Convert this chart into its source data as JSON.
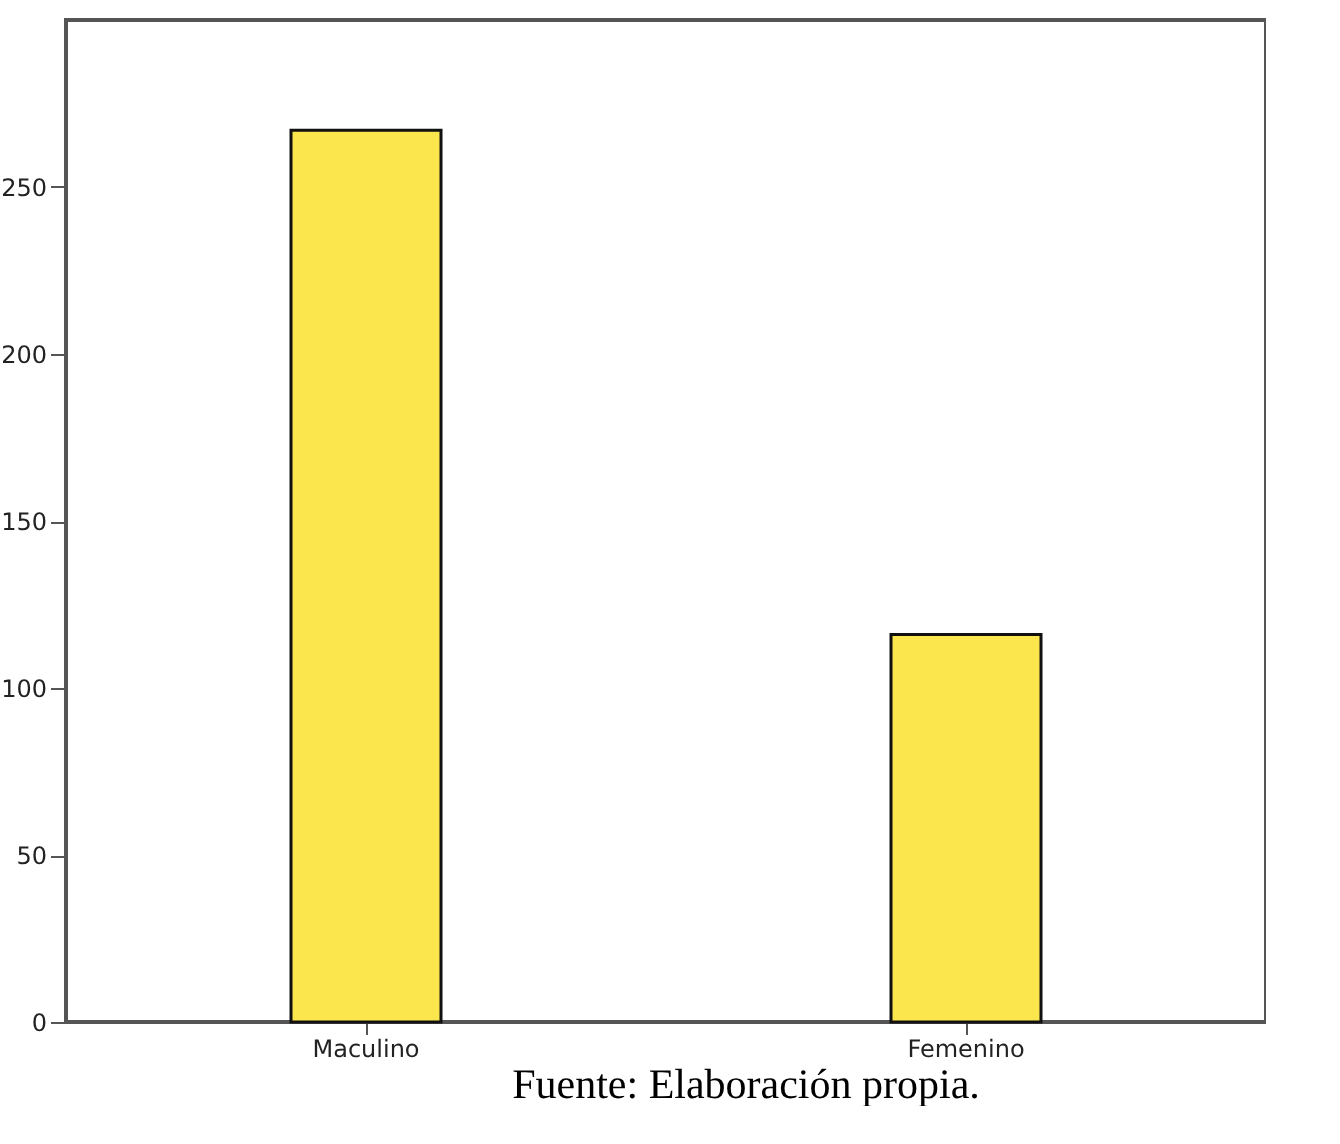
{
  "chart_data": {
    "type": "bar",
    "categories": [
      "Maculino",
      "Femenino"
    ],
    "values": [
      267,
      116
    ],
    "color": "#fbe64d",
    "ylim": [
      0,
      300
    ],
    "yticks": [
      0,
      50,
      100,
      150,
      200,
      250
    ],
    "grid": false,
    "annotations": [
      "Fuente: Elaboración propia."
    ]
  }
}
